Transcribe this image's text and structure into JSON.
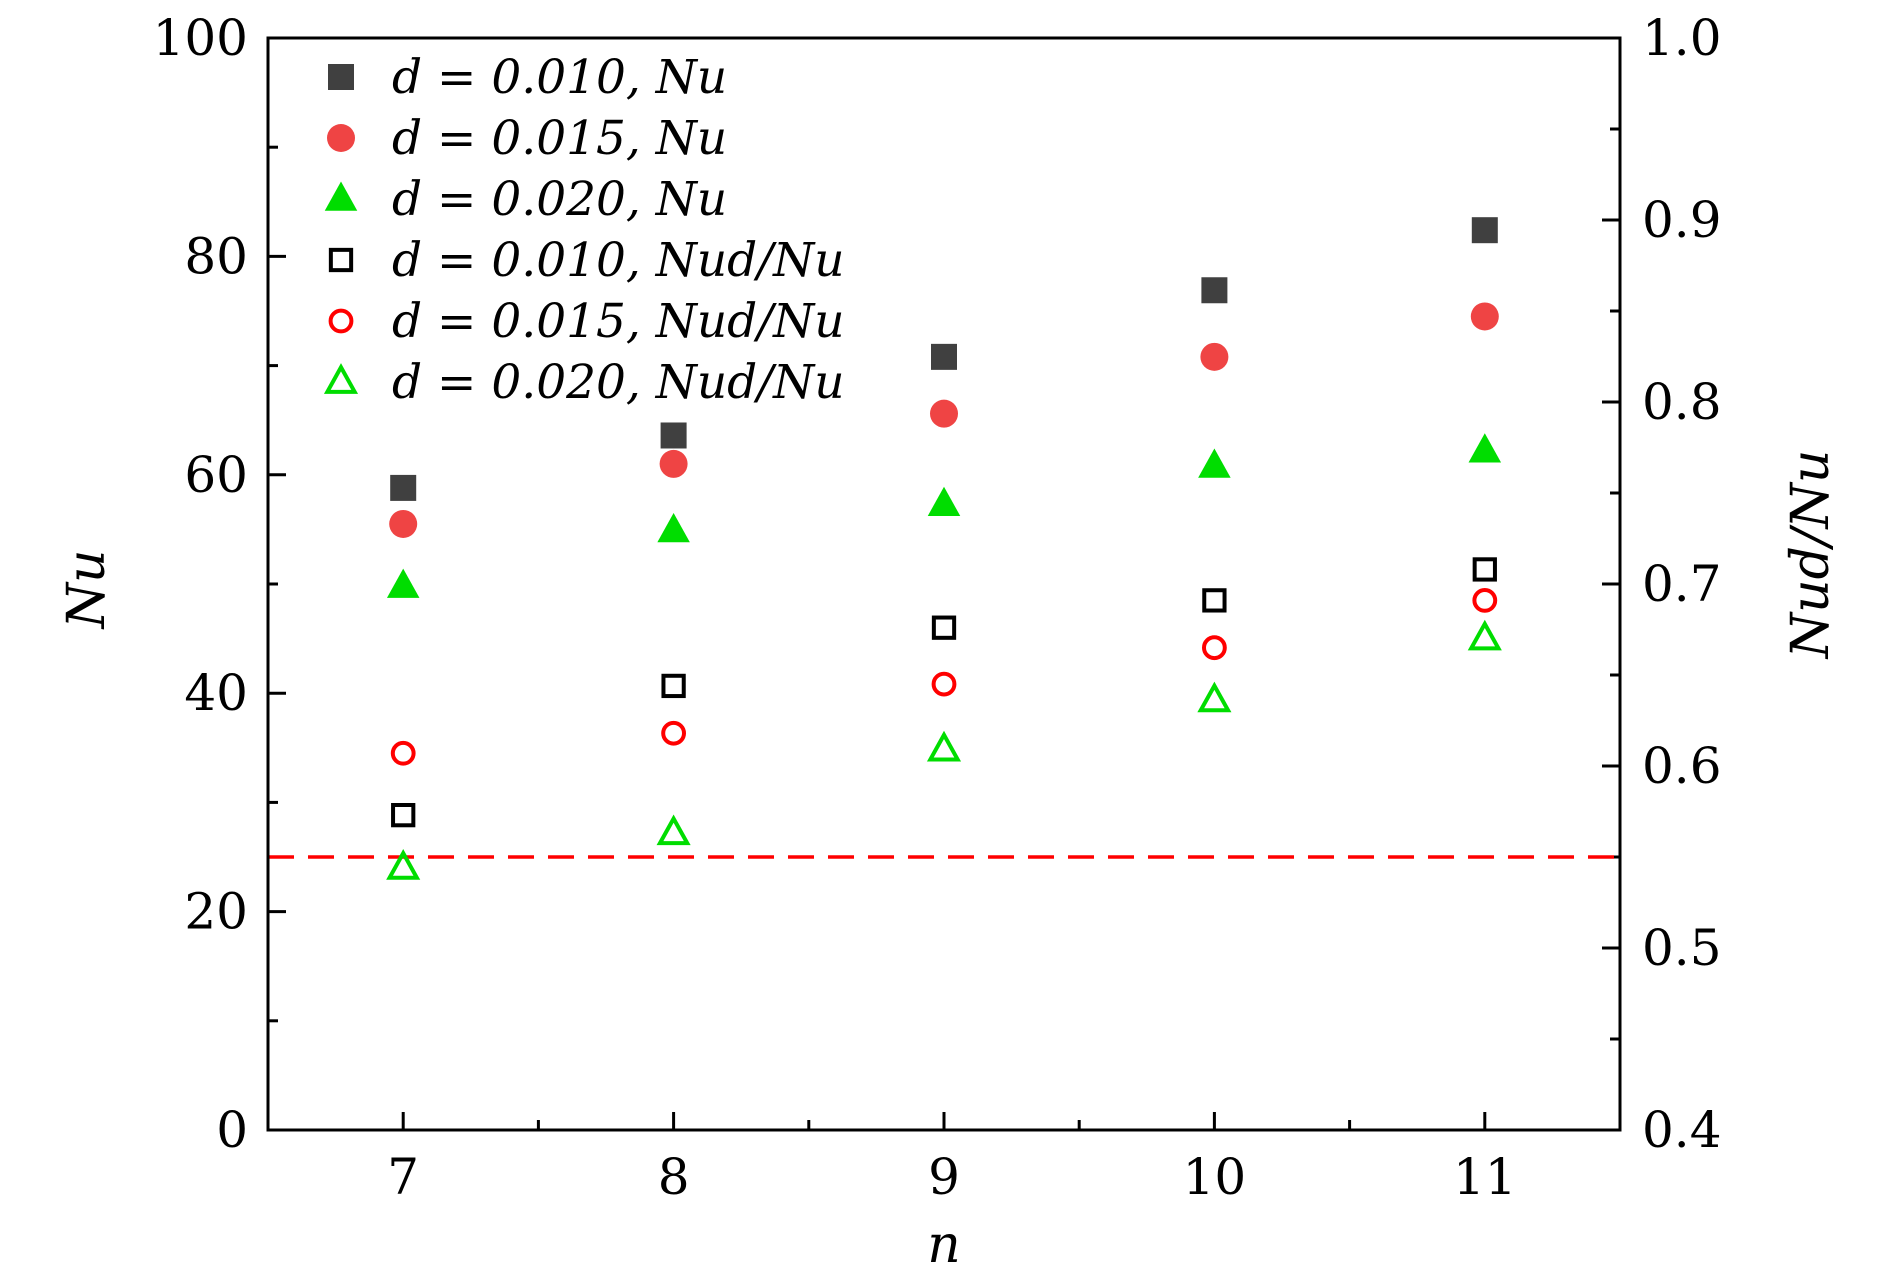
{
  "chart_data": {
    "type": "scatter",
    "xlabel": "n",
    "ylabel_left": "Nu",
    "ylabel_right": "Nud/Nu",
    "x": [
      7,
      8,
      9,
      10,
      11
    ],
    "xlim": [
      6.5,
      11.5
    ],
    "ylim_left": [
      0,
      100
    ],
    "ylim_right": [
      0.4,
      1.0
    ],
    "x_ticks": [
      "7",
      "8",
      "9",
      "10",
      "11"
    ],
    "y_ticks_left": [
      "0",
      "20",
      "40",
      "60",
      "80",
      "100"
    ],
    "y_ticks_right": [
      "0.4",
      "0.5",
      "0.6",
      "0.7",
      "0.8",
      "0.9",
      "1.0"
    ],
    "legend_position": "top-left",
    "series": [
      {
        "name": "d = 0.010, Nu",
        "axis": "left",
        "marker": "square",
        "filled": true,
        "color": "#404040",
        "values": [
          58.8,
          63.6,
          70.8,
          76.9,
          82.4
        ]
      },
      {
        "name": "d = 0.015, Nu",
        "axis": "left",
        "marker": "circle",
        "filled": true,
        "color": "#ef4444",
        "values": [
          55.5,
          61.0,
          65.6,
          70.8,
          74.5
        ]
      },
      {
        "name": "d = 0.020, Nu",
        "axis": "left",
        "marker": "triangle",
        "filled": true,
        "color": "#00dd00",
        "values": [
          49.8,
          54.9,
          57.3,
          60.8,
          62.2
        ]
      },
      {
        "name": "d = 0.010, Nud/Nu",
        "axis": "right",
        "marker": "square",
        "filled": false,
        "color": "#000000",
        "values": [
          0.573,
          0.644,
          0.676,
          0.691,
          0.708
        ]
      },
      {
        "name": "d = 0.015, Nud/Nu",
        "axis": "right",
        "marker": "circle",
        "filled": false,
        "color": "#ff0000",
        "values": [
          0.607,
          0.618,
          0.645,
          0.665,
          0.691
        ]
      },
      {
        "name": "d = 0.020, Nud/Nu",
        "axis": "right",
        "marker": "triangle",
        "filled": false,
        "color": "#00dd00",
        "values": [
          0.544,
          0.563,
          0.609,
          0.636,
          0.67
        ]
      }
    ],
    "reference_line": {
      "axis": "right",
      "value": 0.55,
      "color": "#ff0000",
      "style": "dashed"
    }
  }
}
